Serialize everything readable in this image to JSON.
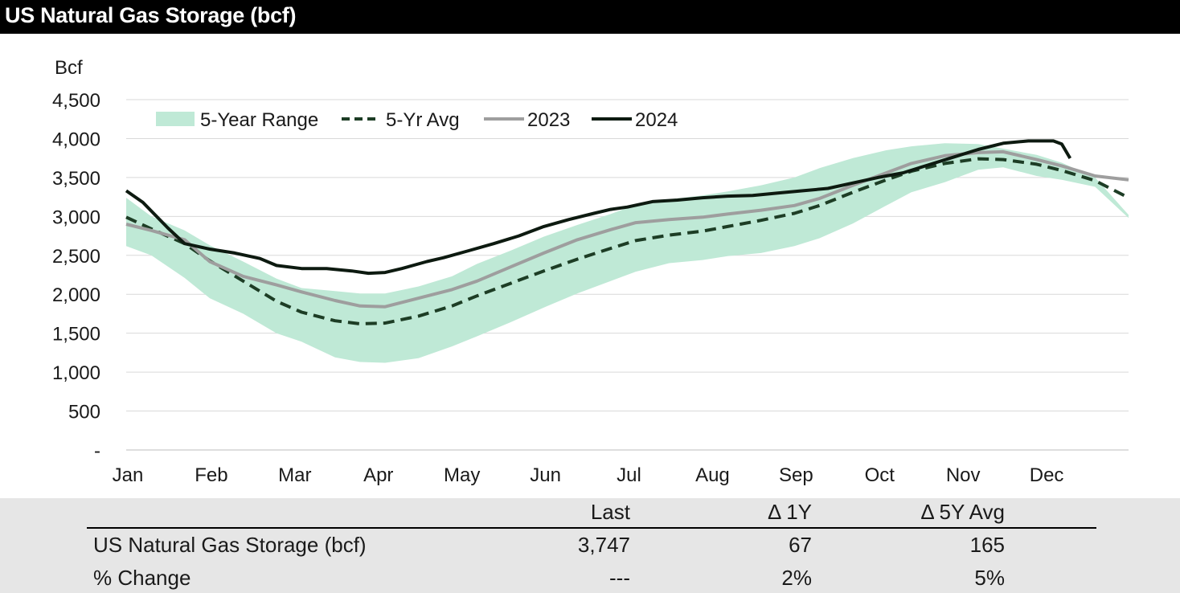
{
  "title": "US Natural Gas Storage (bcf)",
  "colors": {
    "range_fill": "#bfe9d6",
    "avg": "#1d3d25",
    "y2023": "#9e9e9e",
    "y2024": "#0d1a10",
    "grid": "#d9d9d9",
    "table_bg": "#e6e6e6"
  },
  "chart_data": {
    "type": "line",
    "ylabel": "Bcf",
    "ylim": [
      0,
      4500
    ],
    "yticks": [
      0,
      500,
      1000,
      1500,
      2000,
      2500,
      3000,
      3500,
      4000,
      4500
    ],
    "ytick_labels": [
      "-",
      "500",
      "1,000",
      "1,500",
      "2,000",
      "2,500",
      "3,000",
      "3,500",
      "4,000",
      "4,500"
    ],
    "xlim": [
      0,
      12
    ],
    "x_tick_labels": [
      "Jan",
      "Feb",
      "Mar",
      "Apr",
      "May",
      "Jun",
      "Jul",
      "Aug",
      "Sep",
      "Oct",
      "Nov",
      "Dec"
    ],
    "grid": "horizontal",
    "legend_position": "top-left",
    "legend": [
      "5-Year Range",
      "5-Yr Avg",
      "2023",
      "2024"
    ],
    "range": {
      "name": "5-Year Range",
      "x": [
        0,
        0.3,
        0.7,
        1,
        1.4,
        1.8,
        2.1,
        2.5,
        2.8,
        3.1,
        3.5,
        3.9,
        4.2,
        4.6,
        5,
        5.4,
        5.8,
        6.1,
        6.5,
        6.9,
        7.2,
        7.6,
        8,
        8.3,
        8.7,
        9.1,
        9.4,
        9.8,
        10.2,
        10.5,
        10.9,
        11.2,
        11.6,
        12
      ],
      "upper": [
        3240,
        3000,
        2820,
        2630,
        2420,
        2200,
        2080,
        2040,
        2010,
        2010,
        2100,
        2230,
        2390,
        2560,
        2740,
        2890,
        3030,
        3150,
        3220,
        3270,
        3320,
        3400,
        3500,
        3620,
        3750,
        3850,
        3900,
        3940,
        3930,
        3870,
        3790,
        3690,
        3500,
        3020
      ],
      "lower": [
        2620,
        2500,
        2210,
        1950,
        1750,
        1500,
        1390,
        1190,
        1130,
        1120,
        1180,
        1330,
        1460,
        1640,
        1830,
        2010,
        2170,
        2290,
        2400,
        2440,
        2490,
        2530,
        2620,
        2720,
        2910,
        3140,
        3310,
        3440,
        3600,
        3630,
        3520,
        3470,
        3380,
        2980
      ]
    },
    "series": [
      {
        "name": "5-Yr Avg",
        "x": [
          0,
          0.3,
          0.7,
          1,
          1.4,
          1.8,
          2.1,
          2.5,
          2.8,
          3.1,
          3.5,
          3.9,
          4.2,
          4.6,
          5,
          5.4,
          5.8,
          6.1,
          6.5,
          6.9,
          7.2,
          7.6,
          8,
          8.3,
          8.7,
          9.1,
          9.4,
          9.8,
          10.2,
          10.5,
          10.9,
          11.2,
          11.6,
          12
        ],
        "values": [
          2990,
          2840,
          2650,
          2430,
          2170,
          1910,
          1770,
          1660,
          1620,
          1630,
          1720,
          1850,
          1980,
          2140,
          2300,
          2450,
          2590,
          2690,
          2760,
          2810,
          2870,
          2950,
          3040,
          3140,
          3310,
          3470,
          3580,
          3680,
          3740,
          3730,
          3670,
          3590,
          3460,
          3240
        ]
      },
      {
        "name": "2023",
        "x": [
          0,
          0.3,
          0.7,
          1,
          1.4,
          1.8,
          2.1,
          2.5,
          2.8,
          3.1,
          3.5,
          3.9,
          4.2,
          4.6,
          5,
          5.4,
          5.8,
          6.1,
          6.5,
          6.9,
          7.2,
          7.6,
          8,
          8.3,
          8.7,
          9.1,
          9.4,
          9.8,
          10.2,
          10.5,
          10.9,
          11.2,
          11.6,
          12
        ],
        "values": [
          2900,
          2820,
          2700,
          2420,
          2230,
          2120,
          2030,
          1920,
          1850,
          1840,
          1950,
          2060,
          2170,
          2350,
          2530,
          2700,
          2830,
          2920,
          2960,
          2990,
          3030,
          3080,
          3140,
          3230,
          3400,
          3560,
          3680,
          3780,
          3820,
          3830,
          3730,
          3650,
          3520,
          3470
        ]
      },
      {
        "name": "2024",
        "x": [
          0,
          0.2,
          0.5,
          0.7,
          1,
          1.3,
          1.6,
          1.8,
          2.1,
          2.4,
          2.7,
          2.9,
          3.1,
          3.3,
          3.6,
          3.8,
          4.1,
          4.4,
          4.7,
          5,
          5.3,
          5.6,
          5.8,
          6,
          6.3,
          6.6,
          6.9,
          7.2,
          7.5,
          7.8,
          8.1,
          8.4,
          8.7,
          9,
          9.3,
          9.6,
          9.9,
          10.2,
          10.5,
          10.8,
          11.1,
          11.2,
          11.3
        ],
        "values": [
          3330,
          3180,
          2850,
          2650,
          2580,
          2530,
          2460,
          2370,
          2330,
          2330,
          2300,
          2270,
          2280,
          2330,
          2420,
          2470,
          2560,
          2650,
          2750,
          2870,
          2960,
          3040,
          3090,
          3120,
          3190,
          3210,
          3240,
          3260,
          3270,
          3300,
          3330,
          3360,
          3430,
          3500,
          3560,
          3660,
          3760,
          3860,
          3940,
          3970,
          3970,
          3930,
          3747
        ]
      }
    ]
  },
  "table": {
    "headers": [
      "Last",
      "Δ 1Y",
      "Δ 5Y Avg"
    ],
    "rows": [
      {
        "label": "US Natural Gas Storage (bcf)",
        "last": "3,747",
        "d1y": "67",
        "d5y": "165"
      },
      {
        "label": "% Change",
        "last": "---",
        "d1y": "2%",
        "d5y": "5%"
      }
    ]
  }
}
